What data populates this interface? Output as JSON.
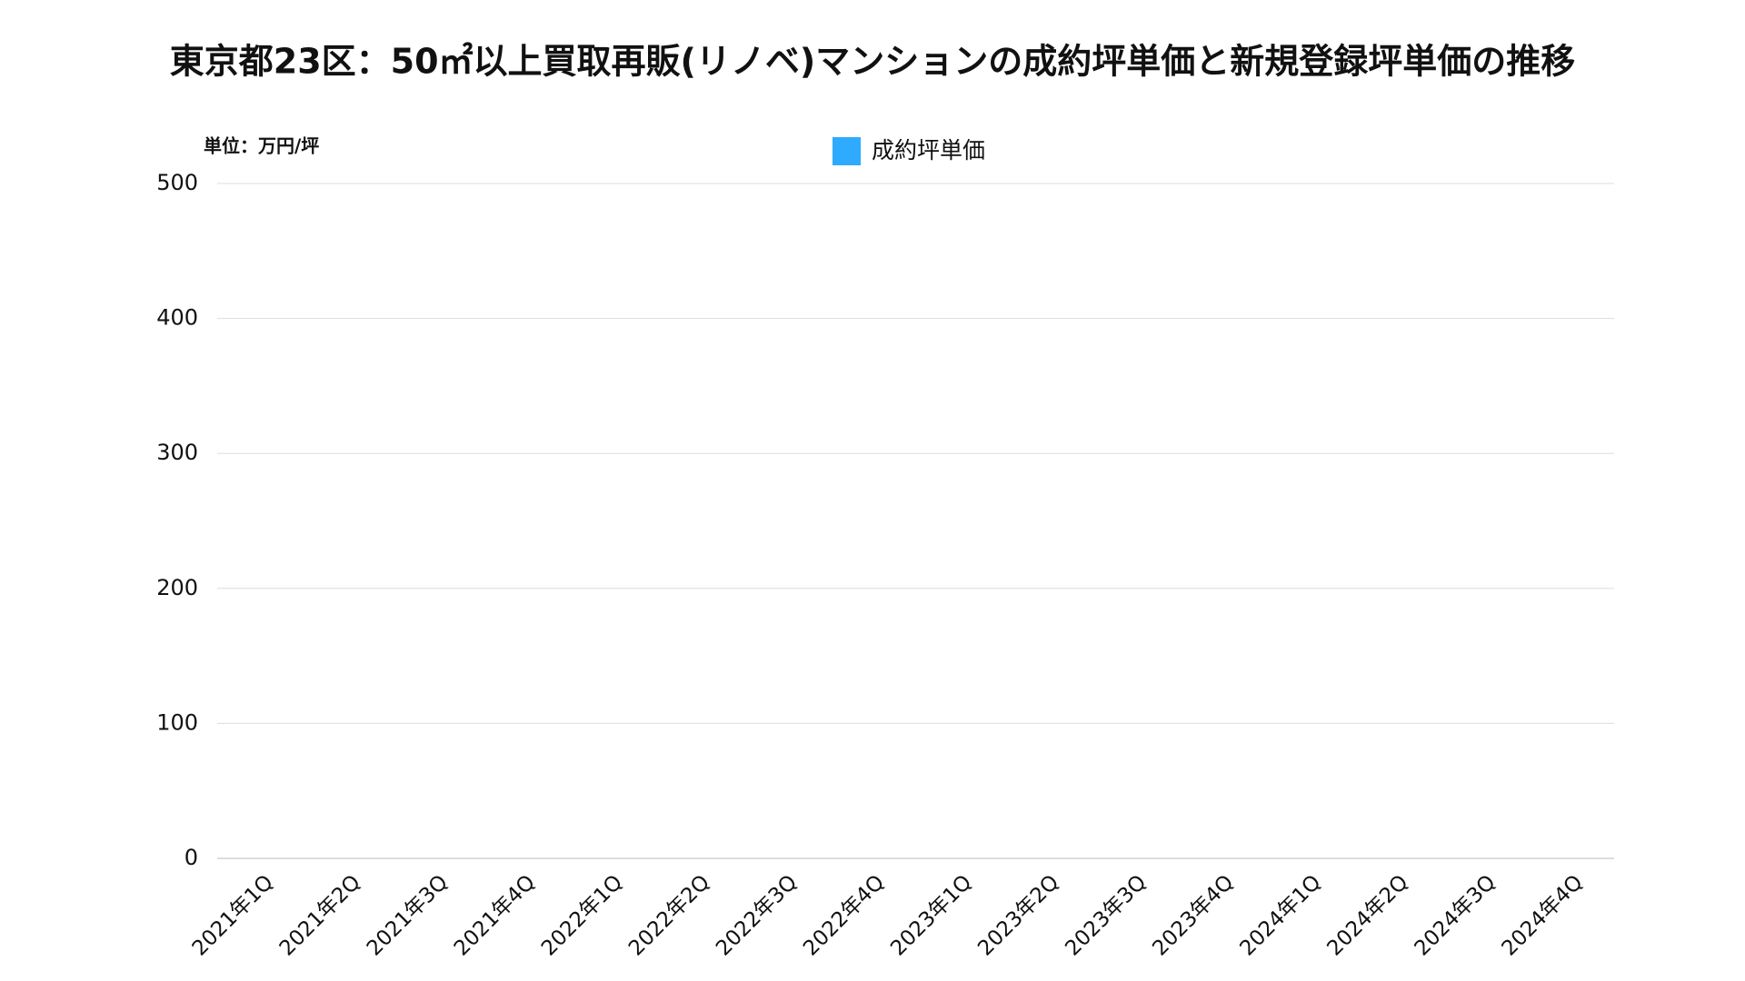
{
  "chart_data": {
    "type": "bar",
    "title": "東京都23区：50㎡以上買取再販(リノベ)マンションの成約坪単価と新規登録坪単価の推移",
    "unit_label": "単位：万円/坪",
    "categories": [
      "2021年1Q",
      "2021年2Q",
      "2021年3Q",
      "2021年4Q",
      "2022年1Q",
      "2022年2Q",
      "2022年3Q",
      "2022年4Q",
      "2023年1Q",
      "2023年2Q",
      "2023年3Q",
      "2023年4Q",
      "2024年1Q",
      "2024年2Q",
      "2024年3Q",
      "2024年4Q"
    ],
    "series": [
      {
        "name": "成約坪単価",
        "color": "#2eaaff",
        "values": [
          null,
          null,
          null,
          null,
          null,
          null,
          null,
          null,
          null,
          null,
          null,
          null,
          null,
          null,
          null,
          null
        ]
      }
    ],
    "ylim": [
      0,
      500
    ],
    "yticks": [
      0,
      100,
      200,
      300,
      400,
      500
    ],
    "grid": true,
    "legend": "top"
  }
}
